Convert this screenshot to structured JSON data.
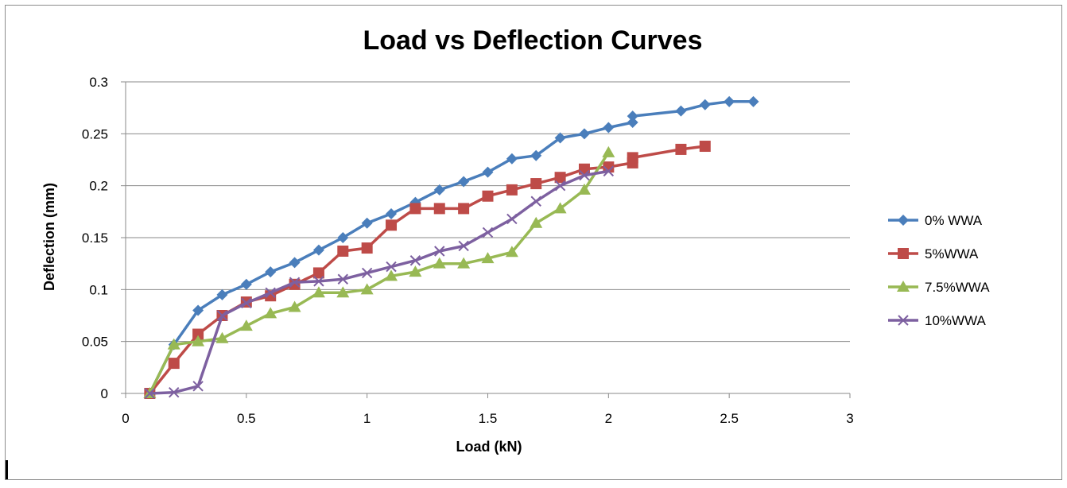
{
  "chart_data": {
    "type": "line",
    "title": "Load vs Deflection Curves",
    "xlabel": "Load (kN)",
    "ylabel": "Deflection (mm)",
    "xlim": [
      0,
      3
    ],
    "ylim": [
      0,
      0.3
    ],
    "xticks": [
      0,
      0.5,
      1,
      1.5,
      2,
      2.5,
      3
    ],
    "xtick_labels": [
      "0",
      "0.5",
      "1",
      "1.5",
      "2",
      "2.5",
      "3"
    ],
    "yticks": [
      0,
      0.05,
      0.1,
      0.15,
      0.2,
      0.25,
      0.3
    ],
    "ytick_labels": [
      "0",
      "0.05",
      "0.1",
      "0.15",
      "0.2",
      "0.25",
      "0.3"
    ],
    "grid": "horizontal",
    "legend_position": "right",
    "series": [
      {
        "name": "0% WWA",
        "color": "#4a7ebb",
        "marker": "diamond",
        "x": [
          0.1,
          0.2,
          0.3,
          0.4,
          0.5,
          0.6,
          0.7,
          0.8,
          0.9,
          1.0,
          1.1,
          1.2,
          1.3,
          1.4,
          1.5,
          1.6,
          1.7,
          1.8,
          1.9,
          2.0,
          2.1,
          2.1,
          2.3,
          2.4,
          2.5,
          2.6
        ],
        "y": [
          0.0,
          0.047,
          0.08,
          0.095,
          0.105,
          0.117,
          0.126,
          0.138,
          0.15,
          0.164,
          0.173,
          0.184,
          0.196,
          0.204,
          0.213,
          0.226,
          0.229,
          0.246,
          0.25,
          0.256,
          0.261,
          0.267,
          0.272,
          0.278,
          0.281,
          0.281
        ]
      },
      {
        "name": "5%WWA",
        "color": "#be4b48",
        "marker": "square",
        "x": [
          0.1,
          0.2,
          0.3,
          0.4,
          0.5,
          0.6,
          0.7,
          0.8,
          0.9,
          1.0,
          1.1,
          1.2,
          1.3,
          1.4,
          1.5,
          1.6,
          1.7,
          1.8,
          1.9,
          2.0,
          2.1,
          2.1,
          2.3,
          2.4
        ],
        "y": [
          0.0,
          0.029,
          0.057,
          0.075,
          0.088,
          0.094,
          0.105,
          0.116,
          0.137,
          0.14,
          0.162,
          0.178,
          0.178,
          0.178,
          0.19,
          0.196,
          0.202,
          0.208,
          0.216,
          0.218,
          0.222,
          0.227,
          0.235,
          0.238
        ]
      },
      {
        "name": "7.5%WWA",
        "color": "#98b954",
        "marker": "triangle",
        "x": [
          0.1,
          0.2,
          0.3,
          0.4,
          0.5,
          0.6,
          0.7,
          0.8,
          0.9,
          1.0,
          1.1,
          1.2,
          1.3,
          1.4,
          1.5,
          1.6,
          1.7,
          1.8,
          1.9,
          2.0
        ],
        "y": [
          0.0,
          0.047,
          0.05,
          0.053,
          0.065,
          0.077,
          0.083,
          0.097,
          0.097,
          0.1,
          0.113,
          0.117,
          0.125,
          0.125,
          0.13,
          0.136,
          0.164,
          0.178,
          0.196,
          0.232
        ]
      },
      {
        "name": "10%WWA",
        "color": "#7d60a0",
        "marker": "x",
        "x": [
          0.1,
          0.2,
          0.3,
          0.4,
          0.5,
          0.6,
          0.7,
          0.8,
          0.9,
          1.0,
          1.1,
          1.2,
          1.3,
          1.4,
          1.5,
          1.6,
          1.7,
          1.8,
          1.9,
          2.0
        ],
        "y": [
          0.0,
          0.001,
          0.007,
          0.075,
          0.087,
          0.097,
          0.107,
          0.108,
          0.11,
          0.116,
          0.122,
          0.128,
          0.137,
          0.142,
          0.155,
          0.168,
          0.185,
          0.2,
          0.21,
          0.214
        ]
      }
    ]
  }
}
